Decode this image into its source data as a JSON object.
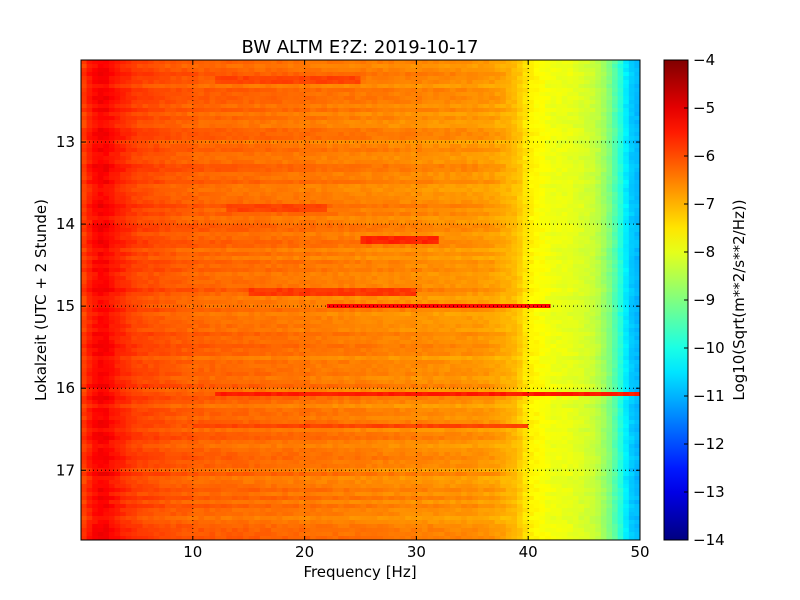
{
  "chart_data": {
    "type": "heatmap",
    "title": "BW ALTM E?Z: 2019-10-17",
    "xlabel": "Frequency [Hz]",
    "ylabel": "Lokalzeit (UTC + 2 Stunde)",
    "xlim": [
      0,
      50
    ],
    "ylim": [
      12.0,
      17.85
    ],
    "y_inverted": true,
    "grid": true,
    "x_ticks": [
      10,
      20,
      30,
      40,
      50
    ],
    "x_tick_labels": [
      "10",
      "20",
      "30",
      "40",
      "50"
    ],
    "y_ticks": [
      13,
      14,
      15,
      16,
      17
    ],
    "y_tick_labels": [
      "13",
      "14",
      "15",
      "16",
      "17"
    ],
    "colorbar": {
      "label": "Log10(Sqrt(m**2/s**2/Hz))",
      "colormap": "jet",
      "range": [
        -14,
        -4
      ],
      "ticks": [
        -4,
        -5,
        -6,
        -7,
        -8,
        -9,
        -10,
        -11,
        -12,
        -13,
        -14
      ],
      "tick_labels": [
        "−4",
        "−5",
        "−6",
        "−7",
        "−8",
        "−9",
        "−10",
        "−11",
        "−12",
        "−13",
        "−14"
      ]
    },
    "spectrum_profile": {
      "frequency_hz": [
        0,
        1,
        2,
        3,
        5,
        8,
        10,
        15,
        20,
        25,
        30,
        35,
        37,
        39,
        40,
        42,
        44,
        46,
        47,
        48,
        49,
        50
      ],
      "level": [
        -6.0,
        -5.4,
        -5.2,
        -5.5,
        -5.9,
        -6.1,
        -6.2,
        -6.3,
        -6.4,
        -6.5,
        -6.6,
        -6.7,
        -6.8,
        -7.1,
        -7.6,
        -7.9,
        -8.0,
        -8.3,
        -8.8,
        -9.6,
        -10.7,
        -11.0
      ]
    },
    "horizontal_features": [
      {
        "time": 15.0,
        "freq_range": [
          22,
          42
        ],
        "level": -5.3
      },
      {
        "time": 16.08,
        "freq_range": [
          12,
          50
        ],
        "level": -5.5
      },
      {
        "time": 14.2,
        "freq_range": [
          25,
          32
        ],
        "level": -5.6
      },
      {
        "time": 14.82,
        "freq_range": [
          15,
          30
        ],
        "level": -5.8
      },
      {
        "time": 13.8,
        "freq_range": [
          13,
          22
        ],
        "level": -5.9
      },
      {
        "time": 12.25,
        "freq_range": [
          12,
          25
        ],
        "level": -5.9
      },
      {
        "time": 16.45,
        "freq_range": [
          10,
          40
        ],
        "level": -5.9
      }
    ]
  }
}
